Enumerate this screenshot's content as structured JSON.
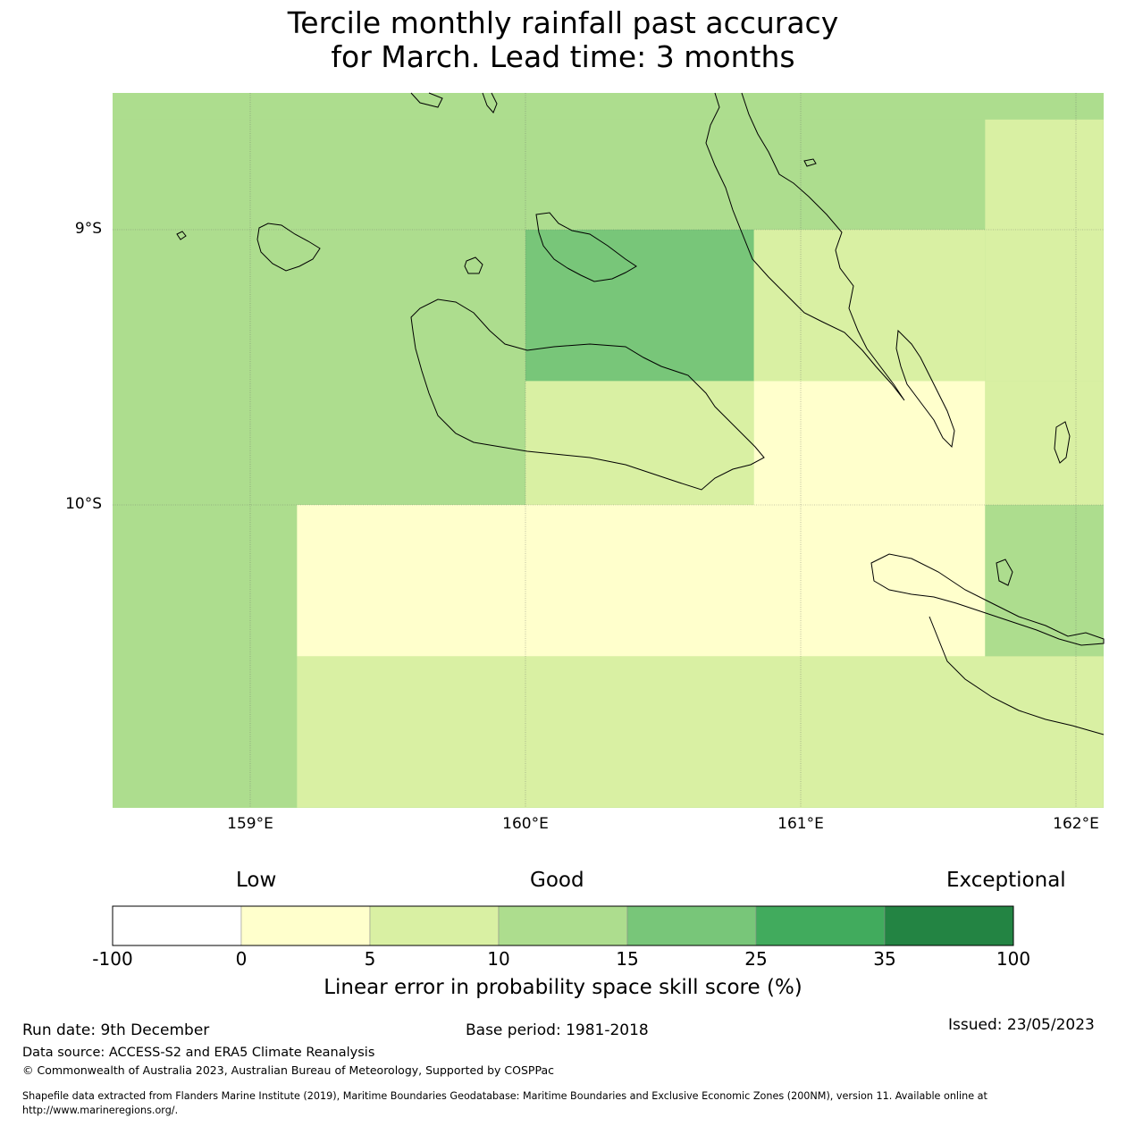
{
  "title": {
    "line1": "Tercile monthly rainfall past accuracy",
    "line2": "for March. Lead time: 3 months"
  },
  "map": {
    "lat_labels": [
      "9°S",
      "10°S"
    ],
    "lon_labels": [
      "159°E",
      "160°E",
      "161°E",
      "162°E"
    ],
    "grid_cells": [
      {
        "lon_range": [
          158.5,
          161.67
        ],
        "lat_range": [
          -8.6,
          -9.0
        ],
        "value_band": "10-15"
      },
      {
        "lon_range": [
          161.67,
          162.1
        ],
        "lat_range": [
          -8.6,
          -9.55
        ],
        "value_band": "5-10"
      },
      {
        "lon_range": [
          160.0,
          160.83
        ],
        "lat_range": [
          -9.0,
          -9.55
        ],
        "value_band": "15-25"
      },
      {
        "lon_range": [
          160.83,
          161.67
        ],
        "lat_range": [
          -9.0,
          -9.55
        ],
        "value_band": "5-10"
      },
      {
        "lon_range": [
          160.0,
          160.83
        ],
        "lat_range": [
          -9.55,
          -10.0
        ],
        "value_band": "5-10"
      },
      {
        "lon_range": [
          160.83,
          161.67
        ],
        "lat_range": [
          -9.55,
          -10.0
        ],
        "value_band": "0-5"
      },
      {
        "lon_range": [
          161.67,
          162.1
        ],
        "lat_range": [
          -9.55,
          -10.0
        ],
        "value_band": "5-10"
      },
      {
        "lon_range": [
          159.17,
          161.67
        ],
        "lat_range": [
          -10.0,
          -10.55
        ],
        "value_band": "0-5"
      },
      {
        "lon_range": [
          161.67,
          162.1
        ],
        "lat_range": [
          -10.0,
          -10.55
        ],
        "value_band": "10-15"
      },
      {
        "lon_range": [
          159.17,
          162.1
        ],
        "lat_range": [
          -10.55,
          -11.1
        ],
        "value_band": "5-10"
      }
    ],
    "background_band": "10-15"
  },
  "colorbar": {
    "category_labels": [
      "Low",
      "Good",
      "Exceptional"
    ],
    "ticks": [
      "-100",
      "0",
      "5",
      "10",
      "15",
      "25",
      "35",
      "100"
    ],
    "colors": [
      "#ffffff",
      "#ffffcc",
      "#d9f0a3",
      "#addd8e",
      "#78c679",
      "#41ab5d",
      "#238443"
    ],
    "label": "Linear error in probability space skill score (%)"
  },
  "footer": {
    "run_date": "Run date: 9th December",
    "base_period": "Base period: 1981-2018",
    "issued": "Issued: 23/05/2023",
    "data_source": "Data source: ACCESS-S2 and ERA5 Climate Reanalysis",
    "copyright": "© Commonwealth of Australia 2023, Australian Bureau of Meteorology, Supported by COSPPac",
    "shapefile_line1": "Shapefile data extracted from Flanders Marine Institute (2019), Maritime Boundaries Geodatabase: Maritime Boundaries and Exclusive Economic Zones (200NM), version 11. Available online at",
    "shapefile_line2": "http://www.marineregions.org/."
  }
}
